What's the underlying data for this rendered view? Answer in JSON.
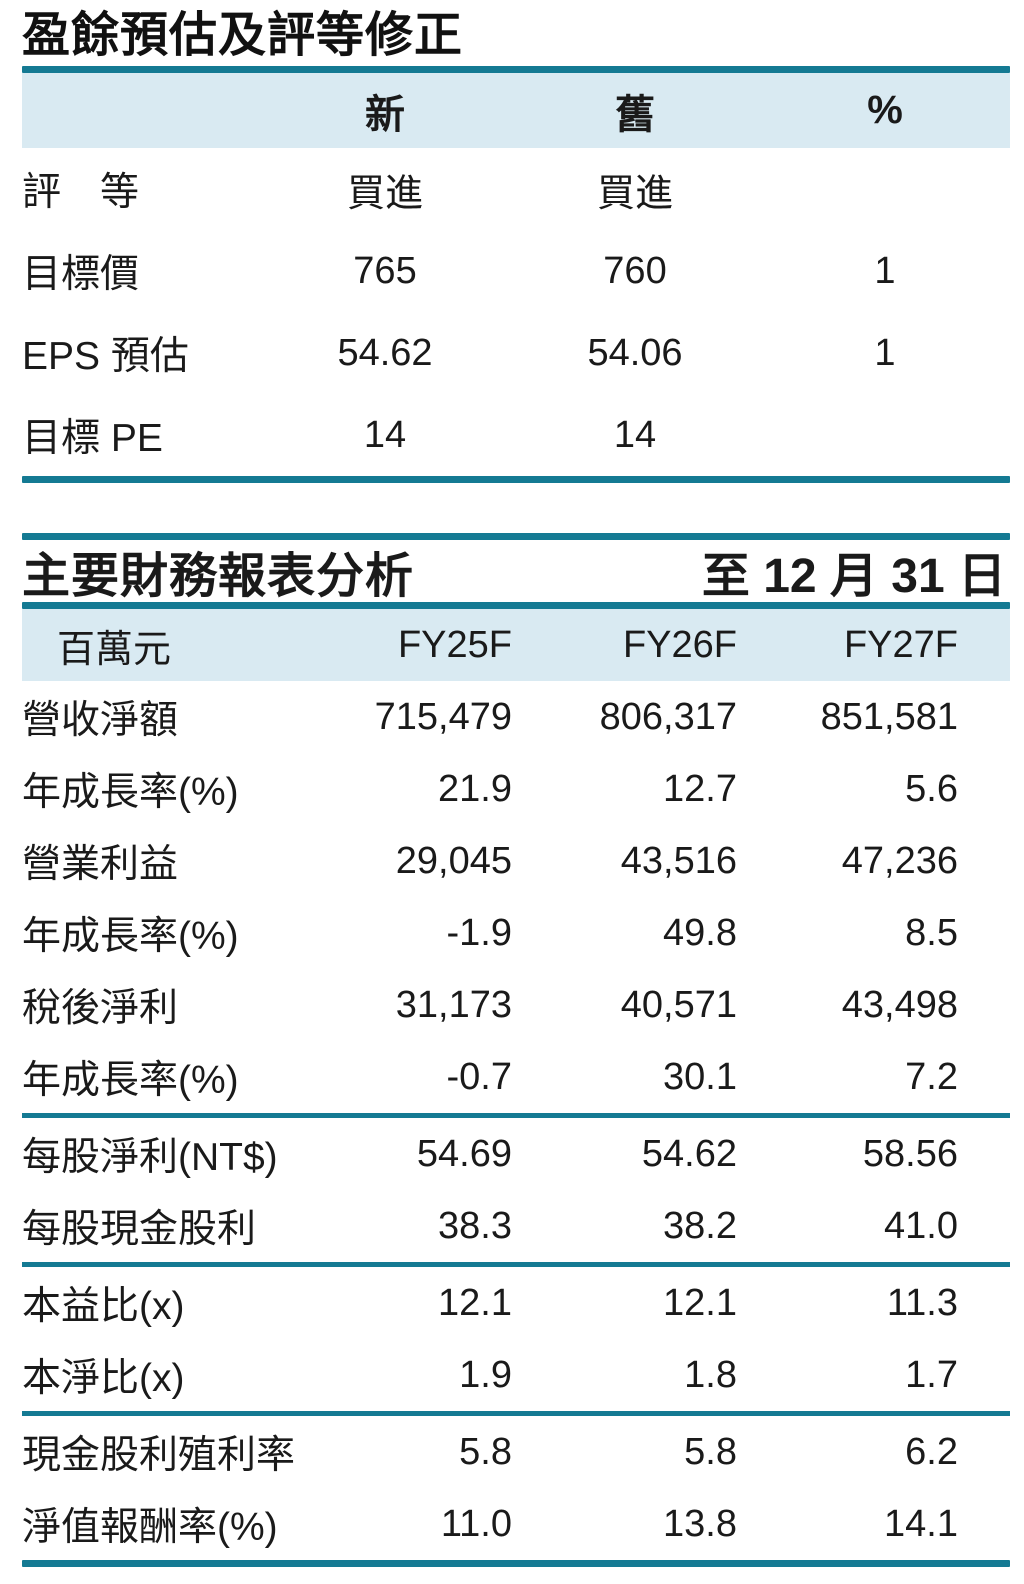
{
  "colors": {
    "rule_teal": "#147a93",
    "header_band_blue": "#d9eaf2",
    "text": "#1a1a1a",
    "background": "#ffffff"
  },
  "table1": {
    "title": "盈餘預估及評等修正",
    "headers": {
      "col_new": "新",
      "col_old": "舊",
      "col_pct": "%"
    },
    "rows": [
      {
        "label": "評　等",
        "new": "買進",
        "old": "買進",
        "pct": ""
      },
      {
        "label": "目標價",
        "new": "765",
        "old": "760",
        "pct": "1"
      },
      {
        "label": "EPS 預估",
        "new": "54.62",
        "old": "54.06",
        "pct": "1"
      },
      {
        "label": "目標 PE",
        "new": "14",
        "old": "14",
        "pct": ""
      }
    ]
  },
  "table2": {
    "title_left": "主要財務報表分析",
    "title_right": "至 12 月 31 日",
    "headers": {
      "unit": "百萬元",
      "fy1": "FY25F",
      "fy2": "FY26F",
      "fy3": "FY27F"
    },
    "sections": [
      {
        "rows": [
          {
            "label": "營收淨額",
            "v1": "715,479",
            "v2": "806,317",
            "v3": "851,581"
          },
          {
            "label": "年成長率(%)",
            "v1": "21.9",
            "v2": "12.7",
            "v3": "5.6"
          },
          {
            "label": "營業利益",
            "v1": "29,045",
            "v2": "43,516",
            "v3": "47,236"
          },
          {
            "label": "年成長率(%)",
            "v1": "-1.9",
            "v2": "49.8",
            "v3": "8.5"
          },
          {
            "label": "稅後淨利",
            "v1": "31,173",
            "v2": "40,571",
            "v3": "43,498"
          },
          {
            "label": "年成長率(%)",
            "v1": "-0.7",
            "v2": "30.1",
            "v3": "7.2"
          }
        ]
      },
      {
        "rows": [
          {
            "label": "每股淨利(NT$)",
            "v1": "54.69",
            "v2": "54.62",
            "v3": "58.56"
          },
          {
            "label": "每股現金股利",
            "v1": "38.3",
            "v2": "38.2",
            "v3": "41.0"
          }
        ]
      },
      {
        "rows": [
          {
            "label": "本益比(x)",
            "v1": "12.1",
            "v2": "12.1",
            "v3": "11.3"
          },
          {
            "label": "本淨比(x)",
            "v1": "1.9",
            "v2": "1.8",
            "v3": "1.7"
          }
        ]
      },
      {
        "rows": [
          {
            "label": "現金股利殖利率",
            "v1": "5.8",
            "v2": "5.8",
            "v3": "6.2"
          },
          {
            "label": "淨值報酬率(%)",
            "v1": "11.0",
            "v2": "13.8",
            "v3": "14.1"
          }
        ]
      }
    ]
  }
}
